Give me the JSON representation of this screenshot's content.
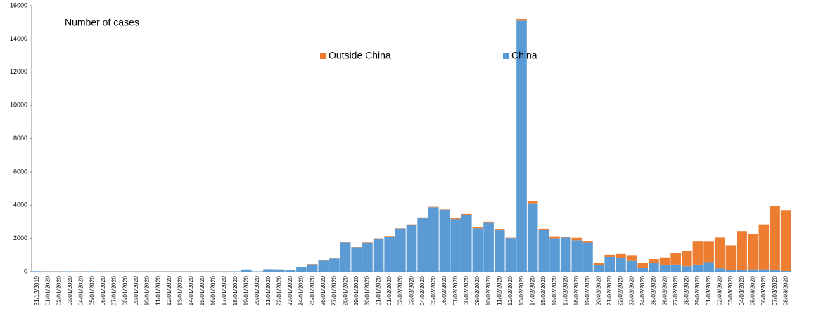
{
  "chart_data": {
    "type": "stacked-bar",
    "annotation": "Number of cases",
    "categories": [
      "31/12/2019",
      "01/01/2020",
      "02/01/2020",
      "03/01/2020",
      "04/01/2020",
      "05/01/2020",
      "06/01/2020",
      "07/01/2020",
      "08/01/2020",
      "09/01/2020",
      "10/01/2020",
      "11/01/2020",
      "12/01/2020",
      "13/01/2020",
      "14/01/2020",
      "15/01/2020",
      "16/01/2020",
      "17/01/2020",
      "18/01/2020",
      "19/01/2020",
      "20/01/2020",
      "21/01/2020",
      "22/01/2020",
      "23/01/2020",
      "24/01/2020",
      "25/01/2020",
      "26/01/2020",
      "27/01/2020",
      "28/01/2020",
      "29/01/2020",
      "30/01/2020",
      "31/01/2020",
      "01/02/2020",
      "02/02/2020",
      "03/02/2020",
      "04/02/2020",
      "05/02/2020",
      "06/02/2020",
      "07/02/2020",
      "08/02/2020",
      "09/02/2020",
      "10/02/2020",
      "11/02/2020",
      "12/02/2020",
      "13/02/2020",
      "14/02/2020",
      "15/02/2020",
      "16/02/2020",
      "17/02/2020",
      "18/02/2020",
      "19/02/2020",
      "20/02/2020",
      "21/02/2020",
      "22/02/2020",
      "23/02/2020",
      "24/02/2020",
      "25/02/2020",
      "26/02/2020",
      "27/02/2020",
      "28/02/2020",
      "29/02/2020",
      "01/03/2020",
      "02/03/2020",
      "03/03/2020",
      "04/03/2020",
      "05/03/2020",
      "06/03/2020",
      "07/03/2020",
      "08/03/2020"
    ],
    "series": [
      {
        "name": "China",
        "color": "#5b9bd5",
        "values": [
          27,
          0,
          0,
          17,
          0,
          15,
          0,
          0,
          0,
          0,
          0,
          0,
          0,
          0,
          0,
          0,
          0,
          4,
          17,
          136,
          20,
          151,
          140,
          97,
          259,
          441,
          665,
          787,
          1753,
          1466,
          1740,
          1980,
          2102,
          2590,
          2812,
          3237,
          3872,
          3727,
          3160,
          3418,
          2607,
          2974,
          2490,
          2022,
          15100,
          4109,
          2520,
          2009,
          2047,
          1888,
          1749,
          391,
          889,
          823,
          648,
          214,
          508,
          406,
          433,
          327,
          427,
          573,
          202,
          125,
          119,
          139,
          143,
          99,
          44
        ]
      },
      {
        "name": "Outside China",
        "color": "#ed7d31",
        "values": [
          0,
          0,
          0,
          0,
          0,
          0,
          0,
          0,
          0,
          0,
          0,
          0,
          0,
          1,
          0,
          1,
          0,
          1,
          0,
          0,
          0,
          3,
          5,
          6,
          6,
          18,
          12,
          10,
          16,
          12,
          25,
          22,
          40,
          20,
          30,
          22,
          30,
          20,
          70,
          50,
          60,
          30,
          80,
          20,
          100,
          140,
          60,
          120,
          30,
          150,
          70,
          150,
          130,
          240,
          350,
          300,
          250,
          450,
          690,
          930,
          1380,
          1230,
          1850,
          1460,
          2320,
          2100,
          2700,
          3830,
          3660
        ]
      }
    ],
    "ylim": [
      0,
      16000
    ],
    "yticks": [
      0,
      2000,
      4000,
      6000,
      8000,
      10000,
      12000,
      14000,
      16000
    ],
    "grid": false
  }
}
